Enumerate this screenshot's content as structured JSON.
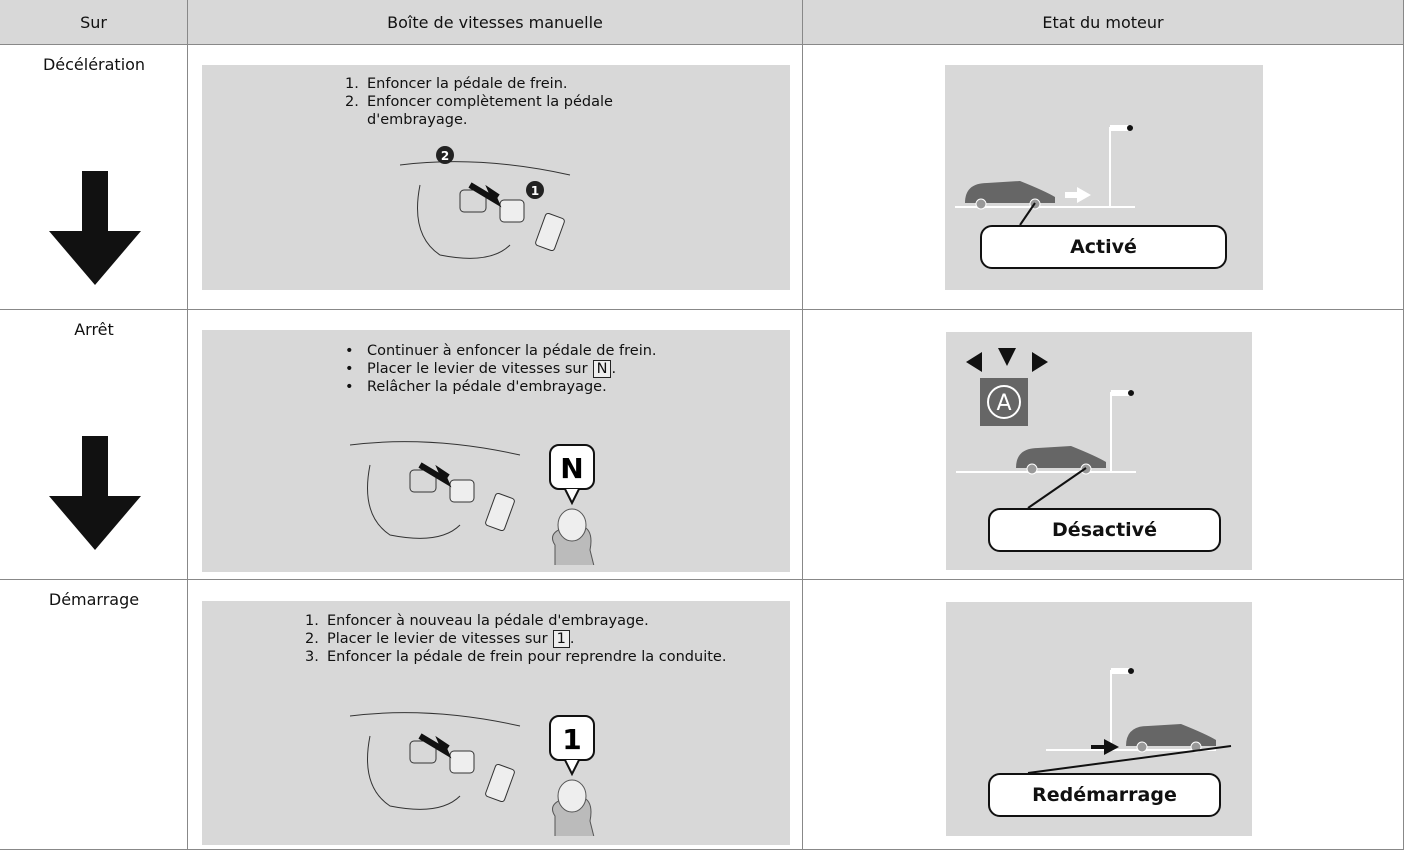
{
  "table": {
    "headers": [
      "Sur",
      "Boîte de vitesses manuelle",
      "Etat du moteur"
    ],
    "rows": [
      {
        "stage": "Décélération",
        "steps": [
          {
            "marker": "1.",
            "text": "Enfoncer la pédale de frein."
          },
          {
            "marker": "2.",
            "text": "Enfoncer complètement la pédale d'embrayage."
          }
        ],
        "badges": [
          "2",
          "1"
        ],
        "status": "Activé"
      },
      {
        "stage": "Arrêt",
        "steps": [
          {
            "marker": "•",
            "text": "Continuer à enfoncer la pédale de frein."
          },
          {
            "marker": "•",
            "text": "Placer le levier de vitesses sur",
            "key": "N",
            "end": "."
          },
          {
            "marker": "•",
            "text": "Relâcher la pédale d'embrayage."
          }
        ],
        "callout": "N",
        "icon": "A",
        "status": "Désactivé"
      },
      {
        "stage": "Démarrage",
        "steps": [
          {
            "marker": "1.",
            "text": "Enfoncer à nouveau la pédale d'embrayage."
          },
          {
            "marker": "2.",
            "text": "Placer le levier de vitesses sur",
            "key": "1",
            "end": "."
          },
          {
            "marker": "3.",
            "text": "Enfoncer la pédale de frein pour reprendre la conduite."
          }
        ],
        "callout": "1",
        "status": "Redémarrage"
      }
    ]
  }
}
